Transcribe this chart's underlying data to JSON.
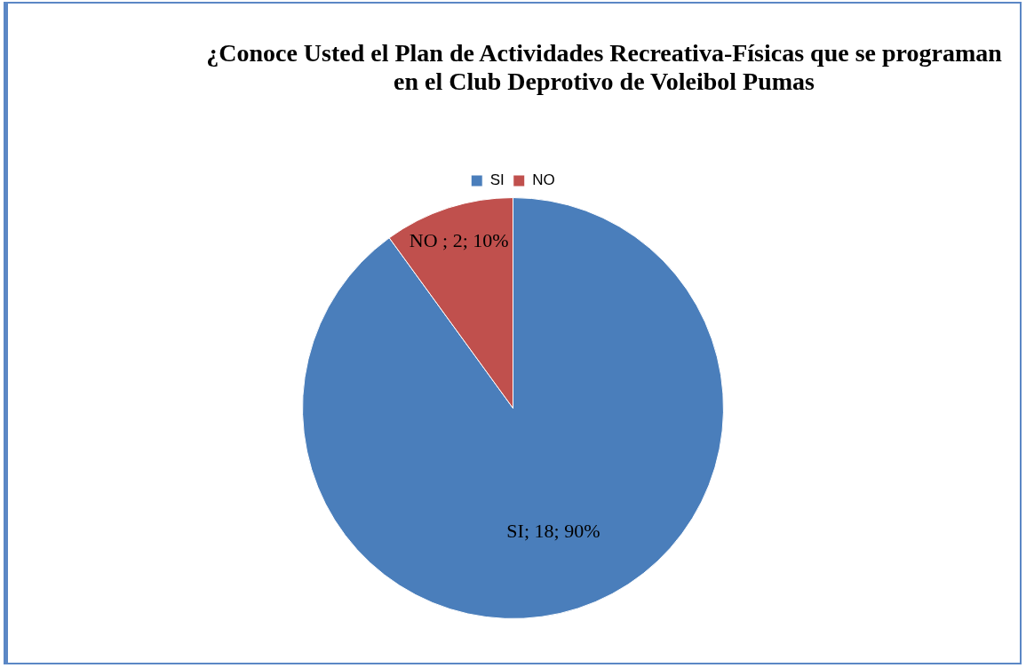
{
  "chart_data": {
    "type": "pie",
    "title": "¿Conoce Usted el Plan de Actividades Recreativa-Físicas que se programan en el Club Deprotivo de Voleibol Pumas",
    "categories": [
      "SI",
      "NO"
    ],
    "values": [
      18,
      2
    ],
    "colors": [
      "#4a7ebb",
      "#c0504d"
    ],
    "value_labels": [
      "SI; 18; 90%",
      "NO ; 2; 10%"
    ],
    "legend": "top"
  }
}
